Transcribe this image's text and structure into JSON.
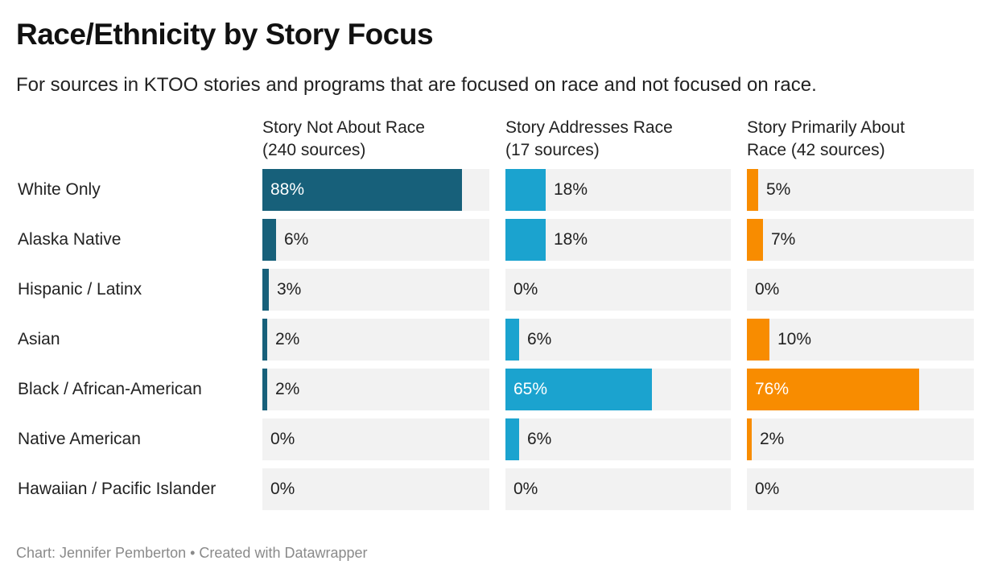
{
  "chart_data": {
    "type": "bar",
    "title": "Race/Ethnicity by Story Focus",
    "subtitle": "For sources in KTOO stories and programs that are focused on race and not focused on race.",
    "categories": [
      "White Only",
      "Alaska Native",
      "Hispanic / Latinx",
      "Asian",
      "Black / African-American",
      "Native American",
      "Hawaiian / Pacific Islander"
    ],
    "series": [
      {
        "name": "Story Not About Race\n(240 sources)",
        "color": "#17607a",
        "values": [
          88,
          6,
          3,
          2,
          2,
          0,
          0
        ]
      },
      {
        "name": "Story Addresses Race\n (17 sources)",
        "color": "#1ba3cf",
        "values": [
          18,
          18,
          0,
          6,
          65,
          6,
          0
        ]
      },
      {
        "name": "Story Primarily About\nRace (42 sources)",
        "color": "#f88c00",
        "values": [
          5,
          7,
          0,
          10,
          76,
          2,
          0
        ]
      }
    ],
    "value_suffix": "%",
    "xlim": [
      0,
      100
    ],
    "track_color": "#f2f2f2",
    "footer": "Chart: Jennifer Pemberton • Created with Datawrapper"
  }
}
